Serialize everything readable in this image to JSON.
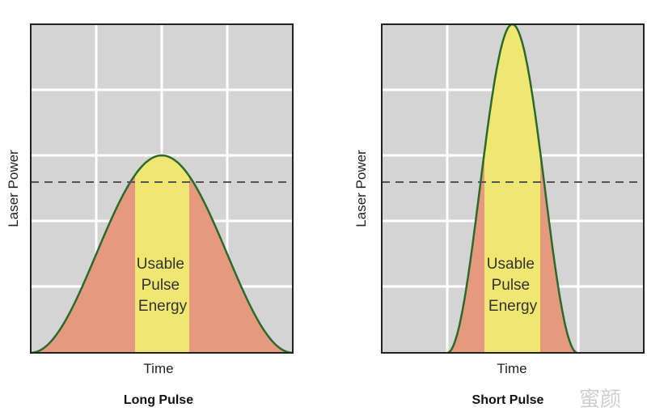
{
  "panels": [
    {
      "id": "long",
      "caption": "Long Pulse",
      "xlabel": "Time",
      "ylabel": "Laser Power",
      "region_label_lines": [
        "Usable",
        "Pulse",
        "Energy"
      ]
    },
    {
      "id": "short",
      "caption": "Short Pulse",
      "xlabel": "Time",
      "ylabel": "Laser Power",
      "region_label_lines": [
        "Usable",
        "Pulse",
        "Energy"
      ]
    }
  ],
  "watermark": "蜜颜",
  "colors": {
    "plot_background": "#d4d4d4",
    "grid": "#ffffff",
    "frame": "#222222",
    "curve": "#2a6a2a",
    "tail_fill": "#e59a7f",
    "usable_fill": "#f0ee70",
    "threshold_line": "#555555"
  }
}
